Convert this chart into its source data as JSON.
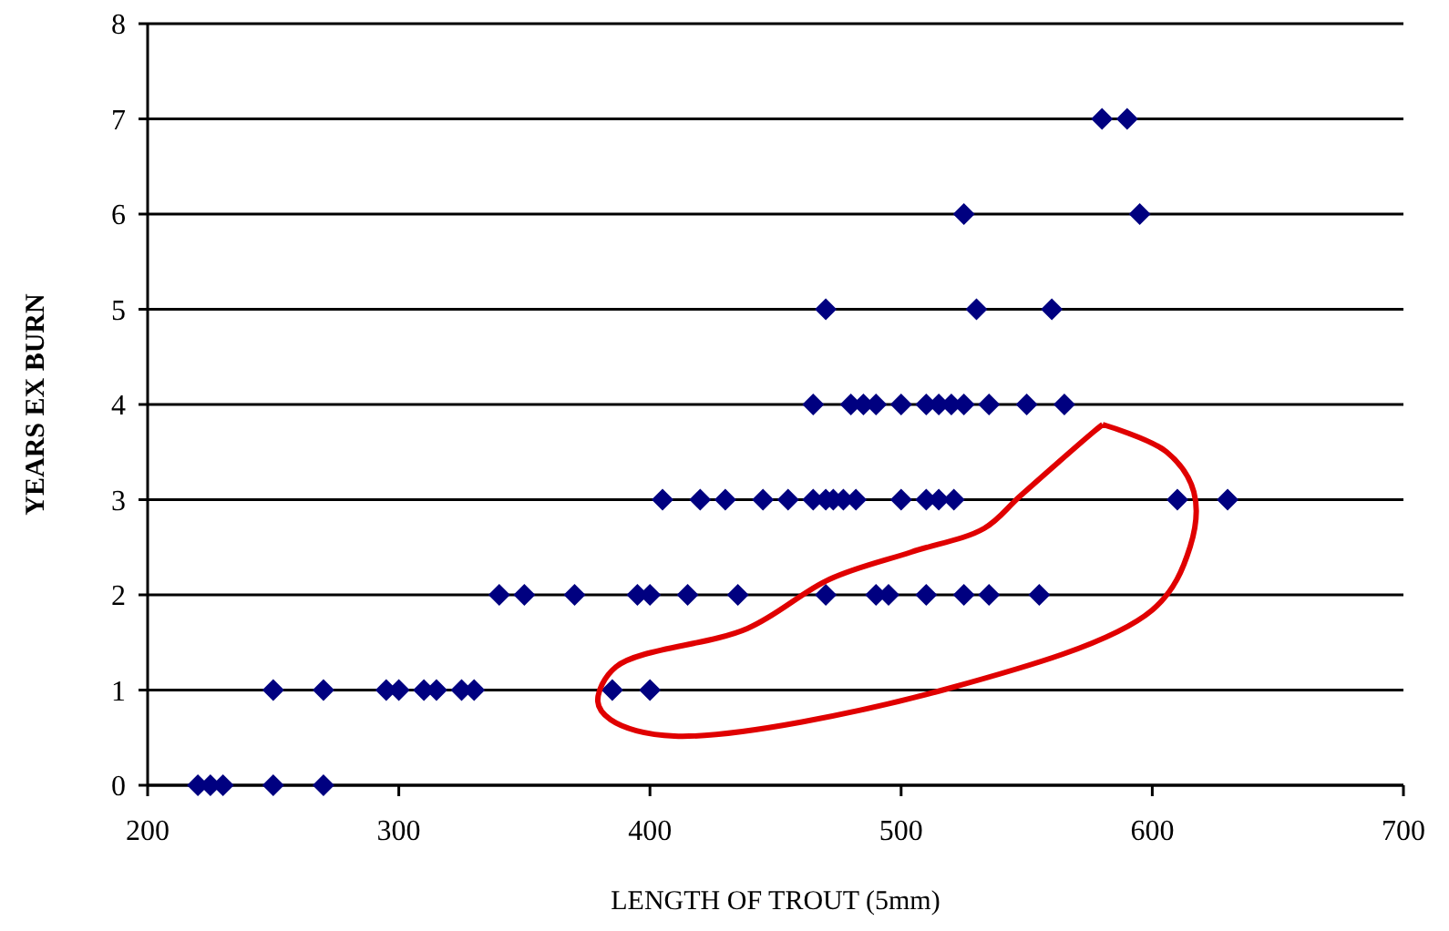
{
  "chart_data": {
    "type": "scatter",
    "xlabel": "LENGTH OF TROUT (5mm)",
    "ylabel": "YEARS EX BURN",
    "xlim": [
      200,
      700
    ],
    "xticks": [
      200,
      300,
      400,
      500,
      600,
      700
    ],
    "ylim": [
      0,
      8
    ],
    "yticks": [
      0,
      1,
      2,
      3,
      4,
      5,
      6,
      7,
      8
    ],
    "grid": "y",
    "marker": "diamond",
    "series": [
      {
        "color": "#000080",
        "x": [
          220,
          225,
          230,
          250,
          270,
          250,
          270,
          295,
          300,
          310,
          315,
          325,
          330,
          385,
          400,
          340,
          350,
          370,
          395,
          400,
          415,
          435,
          470,
          490,
          495,
          510,
          525,
          535,
          555,
          405,
          420,
          430,
          445,
          455,
          465,
          470,
          473,
          477,
          482,
          500,
          510,
          515,
          521,
          610,
          630,
          465,
          480,
          485,
          490,
          500,
          510,
          515,
          520,
          525,
          535,
          550,
          565,
          470,
          530,
          560,
          525,
          595,
          580,
          590
        ],
        "values": [
          0,
          0,
          0,
          0,
          0,
          1,
          1,
          1,
          1,
          1,
          1,
          1,
          1,
          1,
          1,
          2,
          2,
          2,
          2,
          2,
          2,
          2,
          2,
          2,
          2,
          2,
          2,
          2,
          2,
          3,
          3,
          3,
          3,
          3,
          3,
          3,
          3,
          3,
          3,
          3,
          3,
          3,
          3,
          3,
          3,
          4,
          4,
          4,
          4,
          4,
          4,
          4,
          4,
          4,
          4,
          4,
          4,
          5,
          5,
          5,
          6,
          6,
          7,
          7
        ]
      }
    ]
  }
}
